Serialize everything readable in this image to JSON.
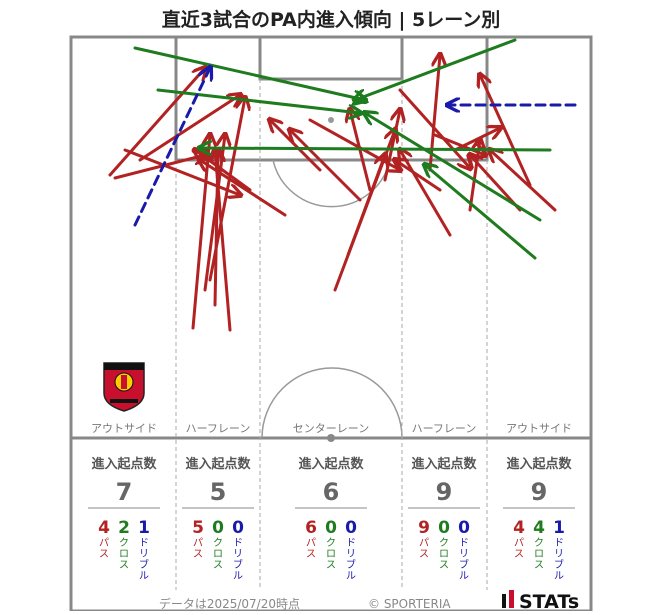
{
  "title": "直近3試合のPA内進入傾向 | 5レーン別",
  "footer": {
    "date_text": "データは2025/07/20時点",
    "copyright": "© SPORTERIA",
    "brand": "STATs"
  },
  "colors": {
    "pass": "#b22222",
    "cross": "#1e7b1e",
    "dribble": "#1a1aaa",
    "pitch_line": "#888888",
    "lane_line": "#aaaaaa"
  },
  "chart_data": {
    "type": "pitch-arrows",
    "lanes": [
      {
        "name": "アウトサイド",
        "stat_label": "進入起点数",
        "total": 7,
        "pass": 4,
        "cross": 2,
        "dribble": 1
      },
      {
        "name": "ハーフレーン",
        "stat_label": "進入起点数",
        "total": 5,
        "pass": 5,
        "cross": 0,
        "dribble": 0
      },
      {
        "name": "センターレーン",
        "stat_label": "進入起点数",
        "total": 6,
        "pass": 6,
        "cross": 0,
        "dribble": 0
      },
      {
        "name": "ハーフレーン",
        "stat_label": "進入起点数",
        "total": 9,
        "pass": 9,
        "cross": 0,
        "dribble": 0
      },
      {
        "name": "アウトサイド",
        "stat_label": "進入起点数",
        "total": 9,
        "pass": 4,
        "cross": 4,
        "dribble": 1
      }
    ],
    "type_labels": {
      "pass": "パス",
      "cross": "クロス",
      "dribble": "ドリブル"
    },
    "arrows": [
      {
        "kind": "pass",
        "from": [
          110,
          175
        ],
        "to": [
          205,
          68
        ]
      },
      {
        "kind": "pass",
        "from": [
          115,
          178
        ],
        "to": [
          205,
          155
        ]
      },
      {
        "kind": "pass",
        "from": [
          140,
          160
        ],
        "to": [
          240,
          95
        ]
      },
      {
        "kind": "pass",
        "from": [
          125,
          150
        ],
        "to": [
          240,
          195
        ]
      },
      {
        "kind": "pass",
        "from": [
          193,
          328
        ],
        "to": [
          210,
          135
        ]
      },
      {
        "kind": "pass",
        "from": [
          230,
          330
        ],
        "to": [
          215,
          150
        ]
      },
      {
        "kind": "pass",
        "from": [
          215,
          305
        ],
        "to": [
          218,
          150
        ]
      },
      {
        "kind": "pass",
        "from": [
          205,
          290
        ],
        "to": [
          225,
          135
        ]
      },
      {
        "kind": "pass",
        "from": [
          210,
          280
        ],
        "to": [
          245,
          98
        ]
      },
      {
        "kind": "pass",
        "from": [
          250,
          190
        ],
        "to": [
          195,
          150
        ]
      },
      {
        "kind": "pass",
        "from": [
          285,
          215
        ],
        "to": [
          200,
          160
        ]
      },
      {
        "kind": "pass",
        "from": [
          335,
          290
        ],
        "to": [
          395,
          130
        ]
      },
      {
        "kind": "pass",
        "from": [
          348,
          255
        ],
        "to": [
          385,
          155
        ]
      },
      {
        "kind": "pass",
        "from": [
          320,
          170
        ],
        "to": [
          270,
          120
        ]
      },
      {
        "kind": "pass",
        "from": [
          360,
          200
        ],
        "to": [
          290,
          130
        ]
      },
      {
        "kind": "pass",
        "from": [
          370,
          190
        ],
        "to": [
          350,
          110
        ]
      },
      {
        "kind": "pass",
        "from": [
          385,
          180
        ],
        "to": [
          400,
          110
        ]
      },
      {
        "kind": "pass",
        "from": [
          310,
          120
        ],
        "to": [
          400,
          170
        ]
      },
      {
        "kind": "pass",
        "from": [
          400,
          90
        ],
        "to": [
          470,
          168
        ]
      },
      {
        "kind": "pass",
        "from": [
          450,
          235
        ],
        "to": [
          400,
          150
        ]
      },
      {
        "kind": "pass",
        "from": [
          440,
          190
        ],
        "to": [
          395,
          160
        ]
      },
      {
        "kind": "pass",
        "from": [
          430,
          170
        ],
        "to": [
          440,
          55
        ]
      },
      {
        "kind": "pass",
        "from": [
          470,
          210
        ],
        "to": [
          480,
          140
        ]
      },
      {
        "kind": "pass",
        "from": [
          455,
          150
        ],
        "to": [
          500,
          128
        ]
      },
      {
        "kind": "pass",
        "from": [
          520,
          210
        ],
        "to": [
          470,
          155
        ]
      },
      {
        "kind": "pass",
        "from": [
          530,
          185
        ],
        "to": [
          480,
          75
        ]
      },
      {
        "kind": "pass",
        "from": [
          555,
          210
        ],
        "to": [
          490,
          150
        ]
      },
      {
        "kind": "pass",
        "from": [
          435,
          135
        ],
        "to": [
          485,
          155
        ]
      },
      {
        "kind": "cross",
        "from": [
          135,
          48
        ],
        "to": [
          365,
          100
        ]
      },
      {
        "kind": "cross",
        "from": [
          158,
          90
        ],
        "to": [
          360,
          113
        ]
      },
      {
        "kind": "cross",
        "from": [
          515,
          40
        ],
        "to": [
          355,
          100
        ]
      },
      {
        "kind": "cross",
        "from": [
          550,
          150
        ],
        "to": [
          200,
          148
        ]
      },
      {
        "kind": "cross",
        "from": [
          540,
          220
        ],
        "to": [
          365,
          113
        ]
      },
      {
        "kind": "cross",
        "from": [
          535,
          258
        ],
        "to": [
          425,
          165
        ]
      },
      {
        "kind": "dribble",
        "from": [
          135,
          225
        ],
        "to": [
          210,
          68
        ]
      },
      {
        "kind": "dribble",
        "from": [
          575,
          105
        ],
        "to": [
          448,
          105
        ]
      }
    ]
  }
}
